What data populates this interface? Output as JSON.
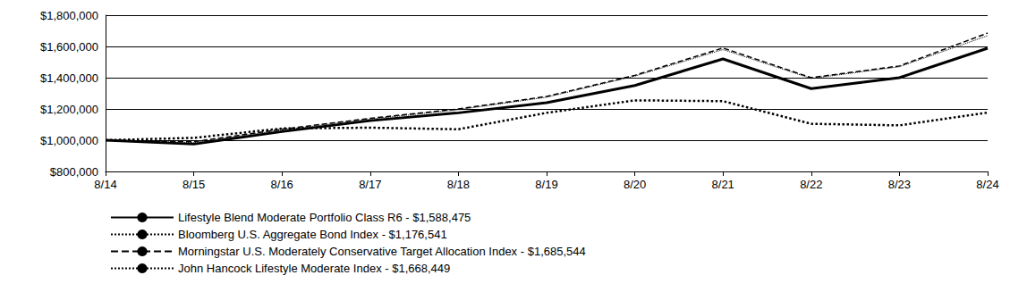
{
  "chart_data": {
    "type": "line",
    "categories": [
      "8/14",
      "8/15",
      "8/16",
      "8/17",
      "8/18",
      "8/19",
      "8/20",
      "8/21",
      "8/22",
      "8/23",
      "8/24"
    ],
    "series": [
      {
        "name": "Lifestyle Blend Moderate Portfolio Class R6 - $1,588,475",
        "color": "#000000",
        "line_style": "solid",
        "values": [
          1000000,
          975000,
          1055000,
          1125000,
          1175000,
          1240000,
          1350000,
          1520000,
          1330000,
          1400000,
          1588475
        ]
      },
      {
        "name": "Bloomberg U.S. Aggregate Bond Index - $1,176,541",
        "color": "#000000",
        "line_style": "dotted",
        "values": [
          1000000,
          1015000,
          1075000,
          1080000,
          1070000,
          1175000,
          1255000,
          1250000,
          1105000,
          1095000,
          1176541
        ]
      },
      {
        "name": "Morningstar U.S. Moderately Conservative Target Allocation Index - $1,685,544",
        "color": "#000000",
        "line_style": "dashed",
        "values": [
          1000000,
          990000,
          1070000,
          1140000,
          1200000,
          1280000,
          1415000,
          1590000,
          1400000,
          1475000,
          1685544
        ]
      },
      {
        "name": "John Hancock Lifestyle Moderate Index - $1,668,449",
        "color": "#000000",
        "line_style": "dotted",
        "values": [
          1000000,
          985000,
          1065000,
          1135000,
          1195000,
          1275000,
          1410000,
          1580000,
          1395000,
          1470000,
          1668449
        ]
      }
    ],
    "ylim": [
      800000,
      1800000
    ],
    "yticks": [
      {
        "value": 800000,
        "label": "$800,000"
      },
      {
        "value": 1000000,
        "label": "$1,000,000"
      },
      {
        "value": 1200000,
        "label": "$1,200,000"
      },
      {
        "value": 1400000,
        "label": "$1,400,000"
      },
      {
        "value": 1600000,
        "label": "$1,600,000"
      },
      {
        "value": 1800000,
        "label": "$1,800,000"
      }
    ],
    "grid": true,
    "legend": "bottom-left"
  }
}
